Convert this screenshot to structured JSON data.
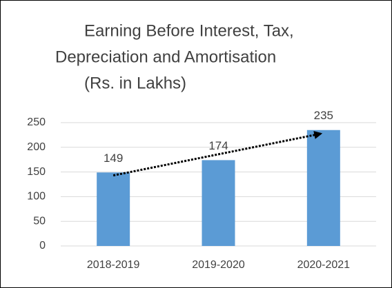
{
  "chart_data": {
    "type": "bar",
    "title": [
      "Earning Before Interest, Tax,",
      "Depreciation and Amortisation",
      "(Rs. in Lakhs)"
    ],
    "categories": [
      "2018-2019",
      "2019-2020",
      "2020-2021"
    ],
    "values": [
      149,
      174,
      235
    ],
    "color": "#5b9bd5",
    "ylim": [
      0,
      250
    ],
    "yticks": [
      0,
      50,
      100,
      150,
      200,
      250
    ],
    "grid": true,
    "trendline": true
  }
}
